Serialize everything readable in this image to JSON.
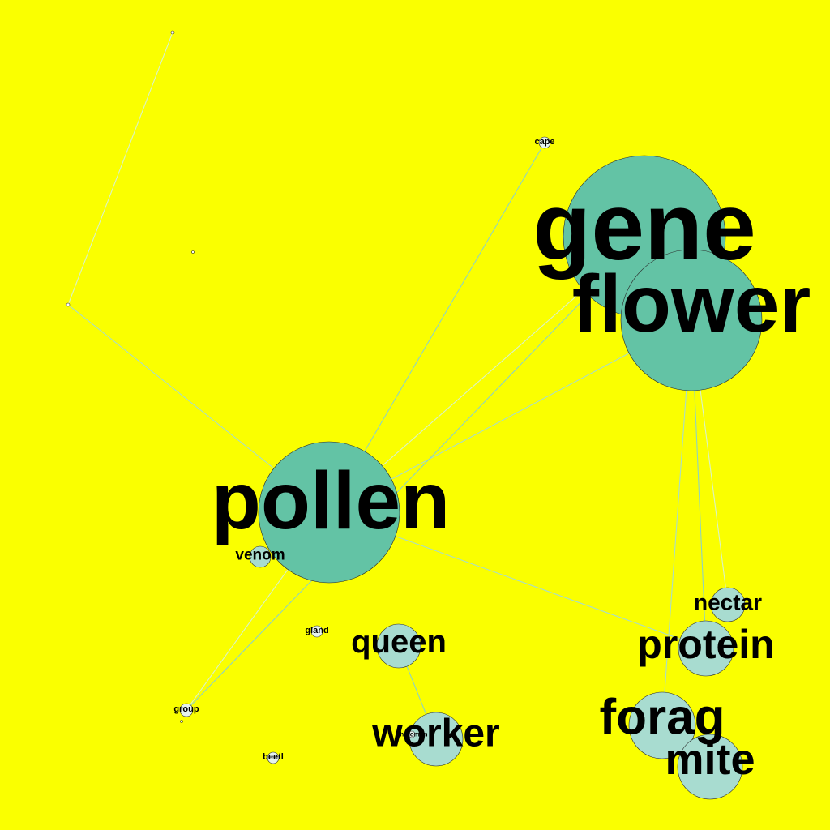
{
  "diagram": {
    "type": "word-co-occurrence network",
    "background_color": "#FAFF00",
    "node_colors": {
      "large": "#63C3A5",
      "small": "#A8DCD0",
      "tiny": "#E6F3EE"
    },
    "edge_colors": [
      "#D9F2C8",
      "#A9DDC8",
      "#8FD3C0"
    ],
    "nodes": [
      {
        "id": "gene",
        "label": "gene",
        "tier": "large"
      },
      {
        "id": "flower",
        "label": "flower",
        "tier": "large"
      },
      {
        "id": "pollen",
        "label": "pollen",
        "tier": "large"
      },
      {
        "id": "protein",
        "label": "protein",
        "tier": "small"
      },
      {
        "id": "nectar",
        "label": "nectar",
        "tier": "small"
      },
      {
        "id": "forag",
        "label": "forag",
        "tier": "small"
      },
      {
        "id": "mite",
        "label": "mite",
        "tier": "small"
      },
      {
        "id": "queen",
        "label": "queen",
        "tier": "small"
      },
      {
        "id": "worker",
        "label": "worker",
        "tier": "small"
      },
      {
        "id": "venom",
        "label": "venom",
        "tier": "small"
      },
      {
        "id": "cape",
        "label": "cape",
        "tier": "tiny"
      },
      {
        "id": "gland",
        "label": "gland",
        "tier": "tiny"
      },
      {
        "id": "group",
        "label": "group",
        "tier": "tiny"
      },
      {
        "id": "beetl",
        "label": "beetl",
        "tier": "tiny"
      },
      {
        "id": "pheromon",
        "label": "pheromon",
        "tier": "tiny"
      },
      {
        "id": "t1",
        "label": "",
        "tier": "dot"
      },
      {
        "id": "t2",
        "label": "",
        "tier": "dot"
      },
      {
        "id": "t3",
        "label": "",
        "tier": "dot"
      },
      {
        "id": "t4",
        "label": "",
        "tier": "dot"
      }
    ],
    "edges": [
      {
        "source": "t1",
        "target": "t2"
      },
      {
        "source": "t2",
        "target": "pollen"
      },
      {
        "source": "cape",
        "target": "pollen"
      },
      {
        "source": "gene",
        "target": "pollen"
      },
      {
        "source": "flower",
        "target": "pollen"
      },
      {
        "source": "gene",
        "target": "group"
      },
      {
        "source": "pollen",
        "target": "group"
      },
      {
        "source": "pollen",
        "target": "protein"
      },
      {
        "source": "flower",
        "target": "protein"
      },
      {
        "source": "flower",
        "target": "nectar"
      },
      {
        "source": "flower",
        "target": "forag"
      },
      {
        "source": "queen",
        "target": "worker"
      }
    ]
  }
}
